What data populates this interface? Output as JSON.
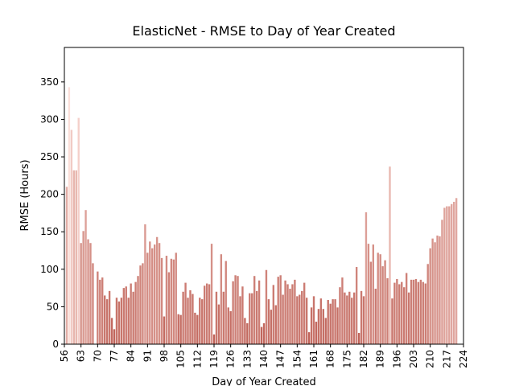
{
  "chart_data": {
    "type": "bar",
    "title": "ElasticNet - RMSE to Day of Year Created",
    "x_label": "Day of Year Created",
    "y_label": "RMSE (Hours)",
    "x": [
      57,
      58,
      59,
      60,
      61,
      62,
      63,
      64,
      65,
      66,
      67,
      68,
      69,
      70,
      71,
      72,
      73,
      74,
      75,
      76,
      77,
      78,
      79,
      80,
      81,
      82,
      83,
      84,
      85,
      86,
      87,
      88,
      89,
      90,
      91,
      92,
      93,
      94,
      95,
      96,
      97,
      98,
      99,
      100,
      101,
      102,
      103,
      104,
      105,
      106,
      107,
      108,
      109,
      110,
      111,
      112,
      113,
      114,
      115,
      116,
      117,
      118,
      119,
      120,
      121,
      122,
      123,
      124,
      125,
      126,
      127,
      128,
      129,
      130,
      131,
      132,
      133,
      134,
      135,
      136,
      137,
      138,
      139,
      140,
      141,
      142,
      143,
      144,
      145,
      146,
      147,
      148,
      149,
      150,
      151,
      152,
      153,
      154,
      155,
      156,
      157,
      158,
      159,
      160,
      161,
      162,
      163,
      164,
      165,
      166,
      167,
      168,
      169,
      170,
      171,
      172,
      173,
      174,
      175,
      176,
      177,
      178,
      179,
      180,
      181,
      182,
      183,
      184,
      185,
      186,
      187,
      188,
      189,
      190,
      191,
      192,
      193,
      194,
      195,
      196,
      197,
      198,
      199,
      200,
      201,
      202,
      203,
      204,
      205,
      206,
      207,
      208,
      209,
      210,
      211,
      212,
      213,
      214,
      215,
      216,
      217,
      218,
      219,
      220,
      221
    ],
    "values": [
      210,
      343,
      286,
      232,
      232,
      302,
      135,
      151,
      179,
      140,
      135,
      108,
      null,
      97,
      86,
      89,
      65,
      60,
      71,
      35,
      20,
      62,
      57,
      62,
      75,
      77,
      62,
      81,
      70,
      83,
      91,
      105,
      108,
      160,
      122,
      137,
      128,
      133,
      143,
      135,
      115,
      37,
      118,
      96,
      114,
      113,
      122,
      40,
      39,
      70,
      82,
      62,
      72,
      67,
      42,
      39,
      62,
      60,
      78,
      81,
      80,
      134,
      13,
      70,
      53,
      120,
      70,
      111,
      49,
      44,
      84,
      92,
      91,
      64,
      77,
      35,
      28,
      68,
      68,
      91,
      71,
      85,
      23,
      28,
      99,
      60,
      46,
      79,
      52,
      90,
      92,
      66,
      85,
      80,
      74,
      80,
      86,
      64,
      66,
      71,
      82,
      62,
      16,
      49,
      64,
      30,
      47,
      61,
      47,
      35,
      59,
      54,
      60,
      60,
      49,
      76,
      89,
      69,
      65,
      70,
      62,
      69,
      103,
      15,
      71,
      64,
      176,
      134,
      110,
      133,
      74,
      122,
      120,
      104,
      112,
      88,
      237,
      61,
      82,
      87,
      80,
      83,
      76,
      95,
      69,
      86,
      86,
      87,
      83,
      86,
      83,
      81,
      107,
      128,
      141,
      136,
      145,
      144,
      166,
      182,
      184,
      184,
      187,
      190,
      195
    ],
    "colormap": {
      "low": "#bf6258",
      "high": "#fbe0da"
    },
    "xlim": [
      56,
      224
    ],
    "xticks": [
      56,
      63,
      70,
      77,
      84,
      91,
      98,
      105,
      112,
      119,
      126,
      133,
      140,
      147,
      154,
      161,
      168,
      175,
      182,
      189,
      196,
      203,
      210,
      217,
      224
    ],
    "ylim": [
      0,
      396
    ],
    "yticks": [
      0,
      50,
      100,
      150,
      200,
      250,
      300,
      350
    ]
  }
}
